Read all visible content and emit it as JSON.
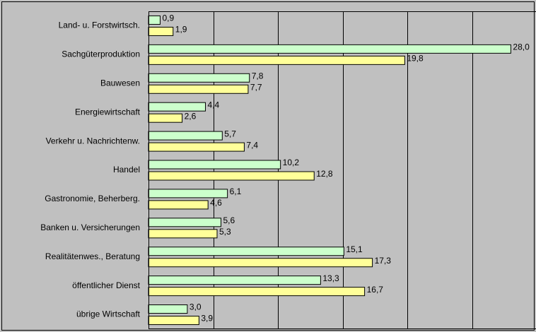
{
  "chart_data": {
    "type": "bar",
    "orientation": "horizontal",
    "categories": [
      "Land- u. Forstwirtsch.",
      "Sachgüterproduktion",
      "Bauwesen",
      "Energiewirtschaft",
      "Verkehr u. Nachrichtenw.",
      "Handel",
      "Gastronomie, Beherberg.",
      "Banken u. Versicherungen",
      "Realitätenwes., Beratung",
      "öffentlicher Dienst",
      "übrige Wirtschaft"
    ],
    "series": [
      {
        "color": "#ccffcc",
        "values": [
          0.9,
          28.0,
          7.8,
          4.4,
          5.7,
          10.2,
          6.1,
          5.6,
          15.1,
          13.3,
          3.0
        ],
        "value_labels": [
          "0,9",
          "28,0",
          "7,8",
          "4,4",
          "5,7",
          "10,2",
          "6,1",
          "5,6",
          "15,1",
          "13,3",
          "3,0"
        ]
      },
      {
        "color": "#ffff99",
        "values": [
          1.9,
          19.8,
          7.7,
          2.6,
          7.4,
          12.8,
          4.6,
          5.3,
          17.3,
          16.7,
          3.9
        ],
        "value_labels": [
          "1,9",
          "19,8",
          "7,7",
          "2,6",
          "7,4",
          "12,8",
          "4,6",
          "5,3",
          "17,3",
          "16,7",
          "3,9"
        ]
      }
    ],
    "xlim": [
      0,
      30
    ],
    "xticks": [
      0,
      5,
      10,
      15,
      20,
      25,
      30
    ],
    "grid": true
  }
}
